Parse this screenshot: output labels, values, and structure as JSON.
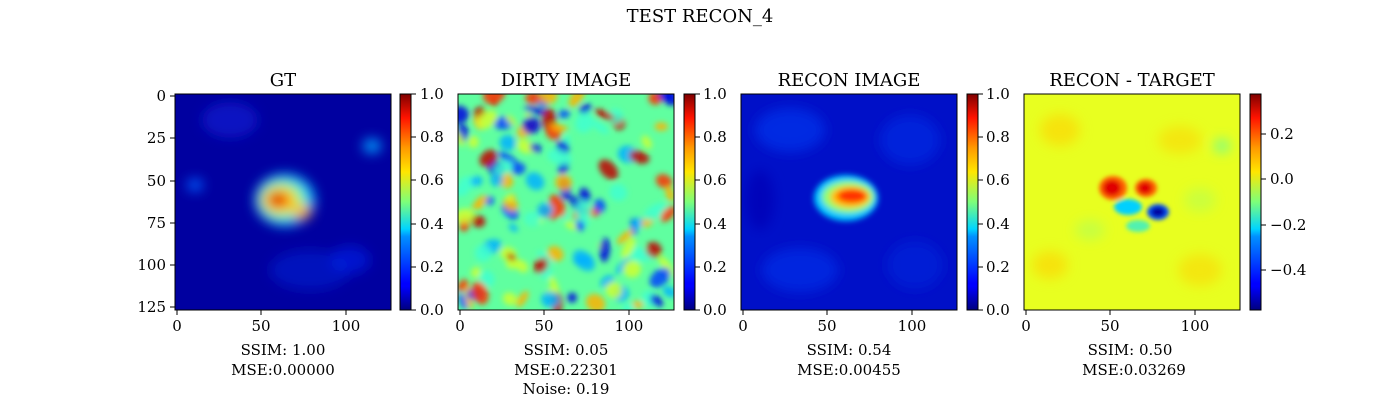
{
  "figure": {
    "title": "TEST RECON_4"
  },
  "colormap": "jet",
  "chart_data": [
    {
      "type": "heatmap",
      "title": "GT",
      "xlim": [
        0,
        127
      ],
      "ylim": [
        127,
        0
      ],
      "x_ticks": [
        "0",
        "50",
        "100"
      ],
      "y_ticks": [
        "0",
        "25",
        "50",
        "75",
        "100",
        "125"
      ],
      "colorbar": {
        "min": 0.0,
        "max": 1.0,
        "ticks": [
          "0.0",
          "0.2",
          "0.4",
          "0.6",
          "0.8",
          "1.0"
        ]
      },
      "metrics": [
        "SSIM: 1.00",
        "MSE:0.00000"
      ]
    },
    {
      "type": "heatmap",
      "title": "DIRTY IMAGE",
      "xlim": [
        0,
        127
      ],
      "ylim": [
        127,
        0
      ],
      "x_ticks": [
        "0",
        "50",
        "100"
      ],
      "colorbar": {
        "min": 0.0,
        "max": 1.0,
        "ticks": [
          "0.0",
          "0.2",
          "0.4",
          "0.6",
          "0.8",
          "1.0"
        ]
      },
      "metrics": [
        "SSIM: 0.05",
        "MSE:0.22301",
        "Noise: 0.19"
      ]
    },
    {
      "type": "heatmap",
      "title": "RECON IMAGE",
      "xlim": [
        0,
        127
      ],
      "ylim": [
        127,
        0
      ],
      "x_ticks": [
        "0",
        "50",
        "100"
      ],
      "colorbar": {
        "min": 0.0,
        "max": 1.0,
        "ticks": [
          "0.0",
          "0.2",
          "0.4",
          "0.6",
          "0.8",
          "1.0"
        ]
      },
      "metrics": [
        "SSIM: 0.54",
        "MSE:0.00455"
      ]
    },
    {
      "type": "heatmap",
      "title": "RECON - TARGET",
      "xlim": [
        0,
        127
      ],
      "ylim": [
        127,
        0
      ],
      "x_ticks": [
        "0",
        "50",
        "100"
      ],
      "colorbar": {
        "min": -0.58,
        "max": 0.37,
        "ticks": [
          "0.2",
          "0.0",
          "−0.2",
          "−0.4"
        ]
      },
      "metrics": [
        "SSIM: 0.50",
        "MSE:0.03269"
      ]
    }
  ]
}
